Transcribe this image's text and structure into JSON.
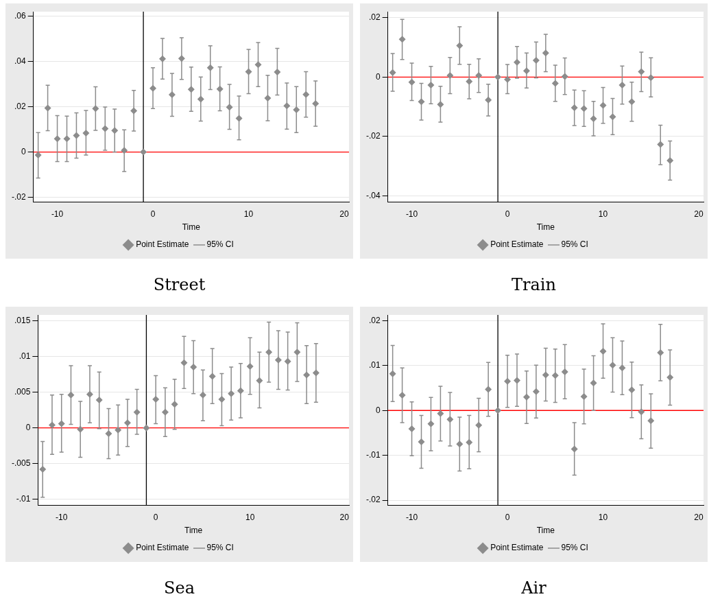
{
  "chart_data": [
    {
      "type": "scatter",
      "title": "Street",
      "xlabel": "Time",
      "x": [
        -12,
        -11,
        -10,
        -9,
        -8,
        -7,
        -6,
        -5,
        -4,
        -3,
        -2,
        -1,
        0,
        1,
        2,
        3,
        4,
        5,
        6,
        7,
        8,
        9,
        10,
        11,
        12,
        13,
        14,
        15,
        16,
        17
      ],
      "series": [
        {
          "name": "Point Estimate",
          "color": "#8c8c8c",
          "values": [
            -0.0013,
            0.0194,
            0.0059,
            0.0059,
            0.0073,
            0.0084,
            0.0192,
            0.0103,
            0.0095,
            0.0007,
            0.0182,
            0,
            0.0281,
            0.0412,
            0.0253,
            0.0413,
            0.0277,
            0.0234,
            0.0372,
            0.0278,
            0.0198,
            0.0149,
            0.0355,
            0.0386,
            0.0238,
            0.0353,
            0.0204,
            0.0187,
            0.0254,
            0.0214
          ],
          "errors": [
            [
              -0.0115,
              0.0086
            ],
            [
              0.0094,
              0.0295
            ],
            [
              -0.0042,
              0.0161
            ],
            [
              -0.0042,
              0.0159
            ],
            [
              -0.0027,
              0.0173
            ],
            [
              -0.0013,
              0.0184
            ],
            [
              0.0096,
              0.0288
            ],
            [
              0.0008,
              0.0199
            ],
            [
              0,
              0.019
            ],
            [
              -0.0086,
              0.0098
            ],
            [
              0.0093,
              0.0272
            ],
            null,
            [
              0.0192,
              0.0372
            ],
            [
              0.0322,
              0.0502
            ],
            [
              0.0158,
              0.0347
            ],
            [
              0.0321,
              0.0505
            ],
            [
              0.018,
              0.0375
            ],
            [
              0.0137,
              0.0331
            ],
            [
              0.0276,
              0.0469
            ],
            [
              0.0182,
              0.0376
            ],
            [
              0.01,
              0.0299
            ],
            [
              0.0054,
              0.0247
            ],
            [
              0.0258,
              0.0453
            ],
            [
              0.0289,
              0.0484
            ],
            [
              0.0138,
              0.0339
            ],
            [
              0.0252,
              0.0458
            ],
            [
              0.0101,
              0.0305
            ],
            [
              0.0086,
              0.0289
            ],
            [
              0.0154,
              0.0355
            ],
            [
              0.0114,
              0.0314
            ]
          ]
        }
      ],
      "annotations": [
        "95% CI"
      ],
      "marker": "diamond",
      "legend": "bottom",
      "grid": "y",
      "xlim": [
        -12.5,
        20.5
      ],
      "xticks": [
        -10,
        0,
        10,
        20
      ],
      "ylim": [
        -0.022,
        0.062
      ],
      "yticks": [
        {
          "value": -0.02,
          "label": "-.02"
        },
        {
          "value": 0,
          "label": "0"
        },
        {
          "value": 0.02,
          "label": ".02"
        },
        {
          "value": 0.04,
          "label": ".04"
        },
        {
          "value": 0.06,
          "label": ".06"
        }
      ],
      "ref_lines": [
        {
          "axis": "y",
          "value": 0,
          "color": "#ff0000"
        },
        {
          "axis": "x",
          "value": -1,
          "color": "#000000"
        }
      ]
    },
    {
      "type": "scatter",
      "title": "Train",
      "xlabel": "Time",
      "x": [
        -12,
        -11,
        -10,
        -9,
        -8,
        -7,
        -6,
        -5,
        -4,
        -3,
        -2,
        -1,
        0,
        1,
        2,
        3,
        4,
        5,
        6,
        7,
        8,
        9,
        10,
        11,
        12,
        13,
        14,
        15,
        16,
        17
      ],
      "series": [
        {
          "name": "Point Estimate",
          "color": "#8c8c8c",
          "values": [
            0.0015,
            0.0127,
            -0.0017,
            -0.0083,
            -0.0027,
            -0.0092,
            0.0005,
            0.0106,
            -0.0015,
            0.0005,
            -0.0077,
            0,
            -0.0008,
            0.005,
            0.0021,
            0.0056,
            0.0081,
            -0.0021,
            0.0002,
            -0.0103,
            -0.0106,
            -0.014,
            -0.0095,
            -0.0134,
            -0.0027,
            -0.0083,
            0.0018,
            -0.0002,
            -0.0227,
            -0.0281
          ],
          "errors": [
            [
              -0.0048,
              0.0079
            ],
            [
              0.0059,
              0.0194
            ],
            [
              -0.0079,
              0.0047
            ],
            [
              -0.0145,
              -0.0021
            ],
            [
              -0.009,
              0.0036
            ],
            [
              -0.0152,
              -0.0031
            ],
            [
              -0.0056,
              0.0066
            ],
            [
              0.0043,
              0.0169
            ],
            [
              -0.0073,
              0.0043
            ],
            [
              -0.0052,
              0.0061
            ],
            [
              -0.0131,
              -0.0024
            ],
            null,
            [
              -0.0056,
              0.0042
            ],
            [
              -0.0004,
              0.0103
            ],
            [
              -0.0037,
              0.0081
            ],
            [
              -0.0003,
              0.0118
            ],
            [
              0.0018,
              0.0144
            ],
            [
              -0.0082,
              0.004
            ],
            [
              -0.0059,
              0.0064
            ],
            [
              -0.0163,
              -0.0044
            ],
            [
              -0.0166,
              -0.0046
            ],
            [
              -0.0198,
              -0.0082
            ],
            [
              -0.0156,
              -0.0035
            ],
            [
              -0.0194,
              -0.0072
            ],
            [
              -0.0091,
              0.0037
            ],
            [
              -0.0149,
              -0.0017
            ],
            [
              -0.0049,
              0.0084
            ],
            [
              -0.0067,
              0.0065
            ],
            [
              -0.0295,
              -0.0162
            ],
            [
              -0.0347,
              -0.0215
            ]
          ]
        }
      ],
      "annotations": [
        "95% CI"
      ],
      "marker": "diamond",
      "legend": "bottom",
      "grid": "y",
      "xlim": [
        -12.5,
        20.5
      ],
      "xticks": [
        -10,
        0,
        10,
        20
      ],
      "ylim": [
        -0.042,
        0.022
      ],
      "yticks": [
        {
          "value": -0.04,
          "label": "-.04"
        },
        {
          "value": -0.02,
          "label": "-.02"
        },
        {
          "value": 0,
          "label": "0"
        },
        {
          "value": 0.02,
          "label": ".02"
        }
      ],
      "ref_lines": [
        {
          "axis": "y",
          "value": 0,
          "color": "#ff0000"
        },
        {
          "axis": "x",
          "value": -1,
          "color": "#000000"
        }
      ]
    },
    {
      "type": "scatter",
      "title": "Sea",
      "xlabel": "Time",
      "x": [
        -12,
        -11,
        -10,
        -9,
        -8,
        -7,
        -6,
        -5,
        -4,
        -3,
        -2,
        -1,
        0,
        1,
        2,
        3,
        4,
        5,
        6,
        7,
        8,
        9,
        10,
        11,
        12,
        13,
        14,
        15,
        16,
        17
      ],
      "series": [
        {
          "name": "Point Estimate",
          "color": "#8c8c8c",
          "values": [
            -0.0058,
            0.0004,
            0.0006,
            0.0046,
            -0.0002,
            0.0047,
            0.0039,
            -0.0008,
            -0.0003,
            0.0007,
            0.0022,
            0,
            0.004,
            0.0022,
            0.0033,
            0.0091,
            0.0085,
            0.0046,
            0.0072,
            0.004,
            0.0048,
            0.0052,
            0.0086,
            0.0066,
            0.0106,
            0.0095,
            0.0093,
            0.0106,
            0.0074,
            0.0077
          ],
          "errors": [
            [
              -0.0097,
              -0.0019
            ],
            [
              -0.0037,
              0.0046
            ],
            [
              -0.0034,
              0.0047
            ],
            [
              0.0005,
              0.0087
            ],
            [
              -0.0041,
              0.0037
            ],
            [
              0.0007,
              0.0087
            ],
            [
              -0.0001,
              0.0078
            ],
            [
              -0.0043,
              0.0027
            ],
            [
              -0.0038,
              0.0032
            ],
            [
              -0.0026,
              0.004
            ],
            [
              -0.0009,
              0.0054
            ],
            null,
            [
              0.0006,
              0.0073
            ],
            [
              -0.0012,
              0.0056
            ],
            [
              -0.0002,
              0.0068
            ],
            [
              0.0055,
              0.0128
            ],
            [
              0.0048,
              0.0122
            ],
            [
              0.001,
              0.0081
            ],
            [
              0.0034,
              0.0111
            ],
            [
              0.0003,
              0.0076
            ],
            [
              0.0011,
              0.0085
            ],
            [
              0.0014,
              0.009
            ],
            [
              0.0047,
              0.0126
            ],
            [
              0.0028,
              0.0106
            ],
            [
              0.0064,
              0.0148
            ],
            [
              0.0054,
              0.0136
            ],
            [
              0.0053,
              0.0134
            ],
            [
              0.0065,
              0.0147
            ],
            [
              0.0034,
              0.0115
            ],
            [
              0.0036,
              0.0118
            ]
          ]
        }
      ],
      "annotations": [
        "95% CI"
      ],
      "marker": "diamond",
      "legend": "bottom",
      "grid": "y",
      "xlim": [
        -12.5,
        20.5
      ],
      "xticks": [
        -10,
        0,
        10,
        20
      ],
      "ylim": [
        -0.0108,
        0.0158
      ],
      "yticks": [
        {
          "value": -0.01,
          "label": "-.01"
        },
        {
          "value": -0.005,
          "label": "-.005"
        },
        {
          "value": 0,
          "label": "0"
        },
        {
          "value": 0.005,
          "label": ".005"
        },
        {
          "value": 0.01,
          "label": ".01"
        },
        {
          "value": 0.015,
          "label": ".015"
        }
      ],
      "ref_lines": [
        {
          "axis": "y",
          "value": 0,
          "color": "#ff0000"
        },
        {
          "axis": "x",
          "value": -1,
          "color": "#000000"
        }
      ]
    },
    {
      "type": "scatter",
      "title": "Air",
      "xlabel": "Time",
      "x": [
        -12,
        -11,
        -10,
        -9,
        -8,
        -7,
        -6,
        -5,
        -4,
        -3,
        -2,
        -1,
        0,
        1,
        2,
        3,
        4,
        5,
        6,
        7,
        8,
        9,
        10,
        11,
        12,
        13,
        14,
        15,
        16,
        17
      ],
      "series": [
        {
          "name": "Point Estimate",
          "color": "#8c8c8c",
          "values": [
            0.0082,
            0.0034,
            -0.0041,
            -0.007,
            -0.003,
            -0.0007,
            -0.002,
            -0.0075,
            -0.0071,
            -0.0033,
            0.0047,
            0,
            0.0065,
            0.0067,
            0.003,
            0.0042,
            0.0079,
            0.0078,
            0.0086,
            -0.0086,
            0.0031,
            0.0061,
            0.0132,
            0.0101,
            0.0095,
            0.0046,
            -0.0003,
            -0.0023,
            0.0129,
            0.0074
          ],
          "errors": [
            [
              0.002,
              0.0145
            ],
            [
              -0.0027,
              0.0095
            ],
            [
              -0.0101,
              0.0019
            ],
            [
              -0.0129,
              -0.0011
            ],
            [
              -0.009,
              0.0029
            ],
            [
              -0.0068,
              0.0054
            ],
            [
              -0.0079,
              0.004
            ],
            [
              -0.0135,
              -0.0015
            ],
            [
              -0.013,
              -0.0011
            ],
            [
              -0.0092,
              0.0027
            ],
            [
              -0.0013,
              0.0107
            ],
            null,
            [
              0.0007,
              0.0123
            ],
            [
              0.0009,
              0.0126
            ],
            [
              -0.0029,
              0.0088
            ],
            [
              -0.0017,
              0.0101
            ],
            [
              0.0021,
              0.0139
            ],
            [
              0.0018,
              0.0137
            ],
            [
              0.0026,
              0.0147
            ],
            [
              -0.0144,
              -0.0027
            ],
            [
              -0.003,
              0.0092
            ],
            [
              0,
              0.0122
            ],
            [
              0.0072,
              0.0193
            ],
            [
              0.0041,
              0.0162
            ],
            [
              0.0035,
              0.0155
            ],
            [
              -0.0016,
              0.0108
            ],
            [
              -0.0063,
              0.0057
            ],
            [
              -0.0084,
              0.0037
            ],
            [
              0.0066,
              0.0192
            ],
            [
              0.0012,
              0.0135
            ]
          ]
        }
      ],
      "annotations": [
        "95% CI"
      ],
      "marker": "diamond",
      "legend": "bottom",
      "grid": "y",
      "xlim": [
        -12.5,
        20.5
      ],
      "xticks": [
        -10,
        0,
        10,
        20
      ],
      "ylim": [
        -0.0211,
        0.0213
      ],
      "yticks": [
        {
          "value": -0.02,
          "label": "-.02"
        },
        {
          "value": -0.01,
          "label": "-.01"
        },
        {
          "value": 0,
          "label": "0"
        },
        {
          "value": 0.01,
          "label": ".01"
        },
        {
          "value": 0.02,
          "label": ".02"
        }
      ],
      "ref_lines": [
        {
          "axis": "y",
          "value": 0,
          "color": "#ff0000"
        },
        {
          "axis": "x",
          "value": -1,
          "color": "#000000"
        }
      ]
    }
  ]
}
